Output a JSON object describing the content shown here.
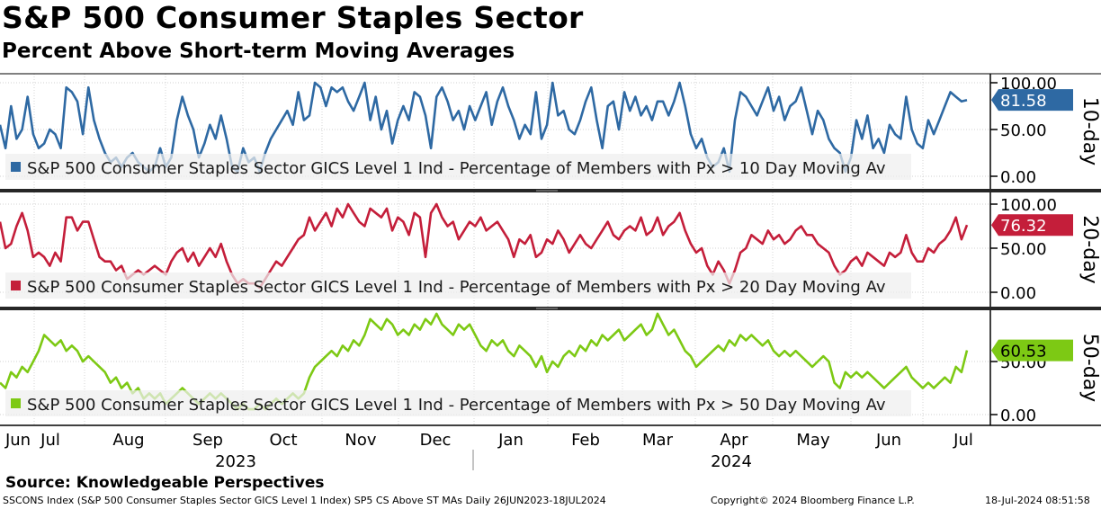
{
  "header": {
    "title": "S&P 500 Consumer Staples Sector",
    "subtitle": "Percent Above Short-term Moving Averages"
  },
  "footer": {
    "source": "Source: Knowledgeable Perspectives",
    "ticker_desc": "SSCONS Index (S&P 500 Consumer Staples Sector GICS Level 1 Index) SP5 CS Above ST MAs  Daily 26JUN2023-18JUL2024",
    "copyright": "Copyright© 2024 Bloomberg Finance L.P.",
    "timestamp": "18-Jul-2024 08:51:58"
  },
  "chart_data": {
    "type": "line",
    "x_axis": {
      "months": [
        "Jun",
        "Jul",
        "Aug",
        "Sep",
        "Oct",
        "Nov",
        "Dec",
        "Jan",
        "Feb",
        "Mar",
        "Apr",
        "May",
        "Jun",
        "Jul"
      ],
      "years": [
        "2023",
        "2024"
      ]
    },
    "panels": [
      {
        "name": "10-day",
        "side_label": "10-day",
        "legend": "S&P 500 Consumer Staples Sector GICS Level 1 Ind - Percentage of Members with Px > 10 Day Moving Av",
        "color": "#2e69a3",
        "last_value": "81.58",
        "ylim": [
          0,
          100
        ],
        "ticks": [
          "100.00",
          "50.00",
          "0.00"
        ],
        "values": [
          55,
          30,
          75,
          40,
          50,
          85,
          45,
          30,
          35,
          50,
          45,
          30,
          95,
          90,
          80,
          45,
          95,
          60,
          40,
          25,
          15,
          20,
          10,
          20,
          25,
          15,
          10,
          5,
          10,
          30,
          10,
          20,
          60,
          85,
          65,
          50,
          20,
          35,
          55,
          40,
          65,
          40,
          10,
          5,
          30,
          15,
          20,
          5,
          25,
          40,
          50,
          60,
          70,
          55,
          90,
          60,
          65,
          100,
          95,
          75,
          95,
          90,
          95,
          80,
          70,
          85,
          100,
          60,
          85,
          50,
          70,
          35,
          60,
          75,
          60,
          90,
          85,
          65,
          30,
          85,
          95,
          80,
          60,
          70,
          50,
          75,
          60,
          75,
          90,
          55,
          80,
          95,
          75,
          60,
          40,
          55,
          45,
          90,
          40,
          55,
          100,
          65,
          70,
          50,
          45,
          60,
          80,
          95,
          60,
          30,
          75,
          80,
          50,
          90,
          70,
          85,
          65,
          75,
          60,
          80,
          80,
          65,
          80,
          100,
          75,
          45,
          30,
          40,
          20,
          10,
          15,
          30,
          5,
          60,
          90,
          85,
          75,
          65,
          80,
          95,
          70,
          85,
          60,
          75,
          80,
          95,
          70,
          45,
          70,
          60,
          40,
          30,
          25,
          5,
          20,
          60,
          40,
          65,
          30,
          40,
          25,
          55,
          45,
          40,
          85,
          50,
          35,
          30,
          60,
          45,
          60,
          75,
          90,
          85,
          80,
          81.58
        ]
      },
      {
        "name": "20-day",
        "side_label": "20-day",
        "legend": "S&P 500 Consumer Staples Sector GICS Level 1 Ind - Percentage of Members with Px > 20 Day Moving Av",
        "color": "#c41e3a",
        "last_value": "76.32",
        "ylim": [
          0,
          100
        ],
        "ticks": [
          "100.00",
          "50.00",
          "0.00"
        ],
        "values": [
          80,
          50,
          55,
          75,
          90,
          70,
          40,
          45,
          40,
          30,
          45,
          35,
          85,
          85,
          70,
          80,
          80,
          60,
          40,
          35,
          35,
          25,
          30,
          15,
          20,
          25,
          20,
          25,
          30,
          25,
          20,
          35,
          45,
          50,
          35,
          45,
          30,
          40,
          50,
          40,
          55,
          35,
          20,
          10,
          15,
          10,
          10,
          5,
          15,
          25,
          35,
          30,
          40,
          50,
          60,
          65,
          85,
          70,
          80,
          90,
          75,
          95,
          85,
          100,
          90,
          80,
          75,
          95,
          90,
          85,
          95,
          70,
          85,
          80,
          65,
          90,
          85,
          40,
          90,
          100,
          85,
          75,
          80,
          60,
          70,
          80,
          75,
          85,
          70,
          75,
          80,
          70,
          60,
          40,
          60,
          55,
          65,
          40,
          45,
          60,
          55,
          70,
          60,
          45,
          55,
          65,
          55,
          50,
          60,
          70,
          80,
          65,
          60,
          70,
          75,
          70,
          85,
          65,
          70,
          85,
          65,
          75,
          80,
          90,
          70,
          55,
          45,
          50,
          30,
          20,
          35,
          25,
          10,
          25,
          45,
          50,
          65,
          60,
          55,
          70,
          60,
          65,
          55,
          60,
          70,
          75,
          65,
          65,
          55,
          50,
          45,
          30,
          20,
          25,
          35,
          40,
          30,
          45,
          40,
          35,
          30,
          45,
          40,
          45,
          65,
          45,
          35,
          35,
          50,
          45,
          55,
          60,
          70,
          85,
          60,
          76.32
        ]
      },
      {
        "name": "50-day",
        "side_label": "50-day",
        "legend": "S&P 500 Consumer Staples Sector GICS Level 1 Ind - Percentage of Members with Px > 50 Day Moving Av",
        "color": "#7dc914",
        "last_value": "60.53",
        "ylim": [
          0,
          100
        ],
        "ticks": [
          "50.00",
          "0.00"
        ],
        "values": [
          30,
          25,
          40,
          35,
          45,
          40,
          50,
          60,
          75,
          70,
          65,
          70,
          60,
          65,
          60,
          50,
          55,
          50,
          45,
          40,
          30,
          35,
          25,
          30,
          20,
          25,
          15,
          20,
          15,
          20,
          10,
          15,
          20,
          25,
          20,
          15,
          10,
          15,
          20,
          15,
          20,
          15,
          10,
          5,
          10,
          5,
          5,
          10,
          5,
          10,
          15,
          10,
          15,
          20,
          15,
          20,
          35,
          45,
          50,
          55,
          60,
          55,
          65,
          60,
          70,
          65,
          75,
          90,
          85,
          80,
          90,
          85,
          75,
          80,
          75,
          85,
          80,
          90,
          85,
          95,
          85,
          80,
          75,
          85,
          80,
          85,
          75,
          65,
          60,
          70,
          65,
          70,
          60,
          55,
          65,
          60,
          55,
          45,
          55,
          40,
          50,
          45,
          55,
          60,
          55,
          65,
          60,
          70,
          65,
          75,
          70,
          75,
          80,
          70,
          75,
          80,
          85,
          75,
          80,
          95,
          85,
          75,
          80,
          70,
          60,
          55,
          45,
          50,
          55,
          60,
          65,
          60,
          70,
          65,
          75,
          70,
          75,
          70,
          65,
          70,
          60,
          55,
          60,
          55,
          60,
          55,
          50,
          45,
          50,
          55,
          50,
          30,
          25,
          40,
          35,
          40,
          35,
          40,
          35,
          30,
          25,
          30,
          35,
          40,
          45,
          35,
          30,
          25,
          30,
          25,
          30,
          35,
          30,
          45,
          40,
          60.53
        ]
      }
    ]
  }
}
